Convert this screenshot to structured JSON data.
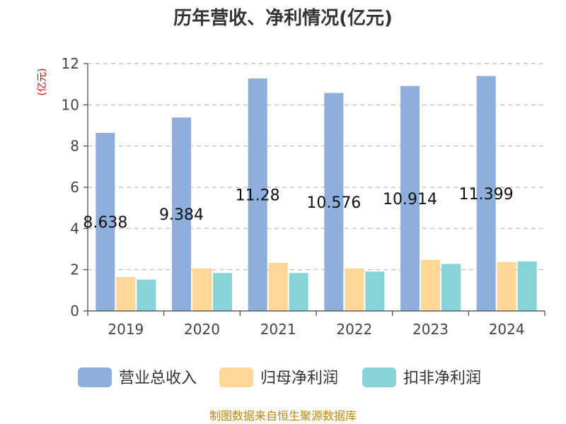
{
  "chart_data": {
    "type": "bar",
    "title": "历年营收、净利情况(亿元)",
    "ylabel": "(亿元)",
    "categories": [
      "2019",
      "2020",
      "2021",
      "2022",
      "2023",
      "2024"
    ],
    "series": [
      {
        "name": "营业总收入",
        "color": "#8eaedb",
        "values": [
          8.638,
          9.384,
          11.28,
          10.576,
          10.914,
          11.399
        ]
      },
      {
        "name": "归母净利润",
        "color": "#fed695",
        "values": [
          1.65,
          2.07,
          2.33,
          2.07,
          2.48,
          2.37
        ]
      },
      {
        "name": "扣非净利润",
        "color": "#86d4d8",
        "values": [
          1.52,
          1.84,
          1.84,
          1.91,
          2.28,
          2.4
        ]
      }
    ],
    "data_labels": [
      "8.638",
      "9.384",
      "11.28",
      "10.576",
      "10.914",
      "11.399"
    ],
    "ylim": [
      0,
      12
    ],
    "yticks": [
      0,
      2,
      4,
      6,
      8,
      10,
      12
    ],
    "grid": true,
    "legend": "bottom"
  },
  "footer": "制图数据来自恒生聚源数据库"
}
